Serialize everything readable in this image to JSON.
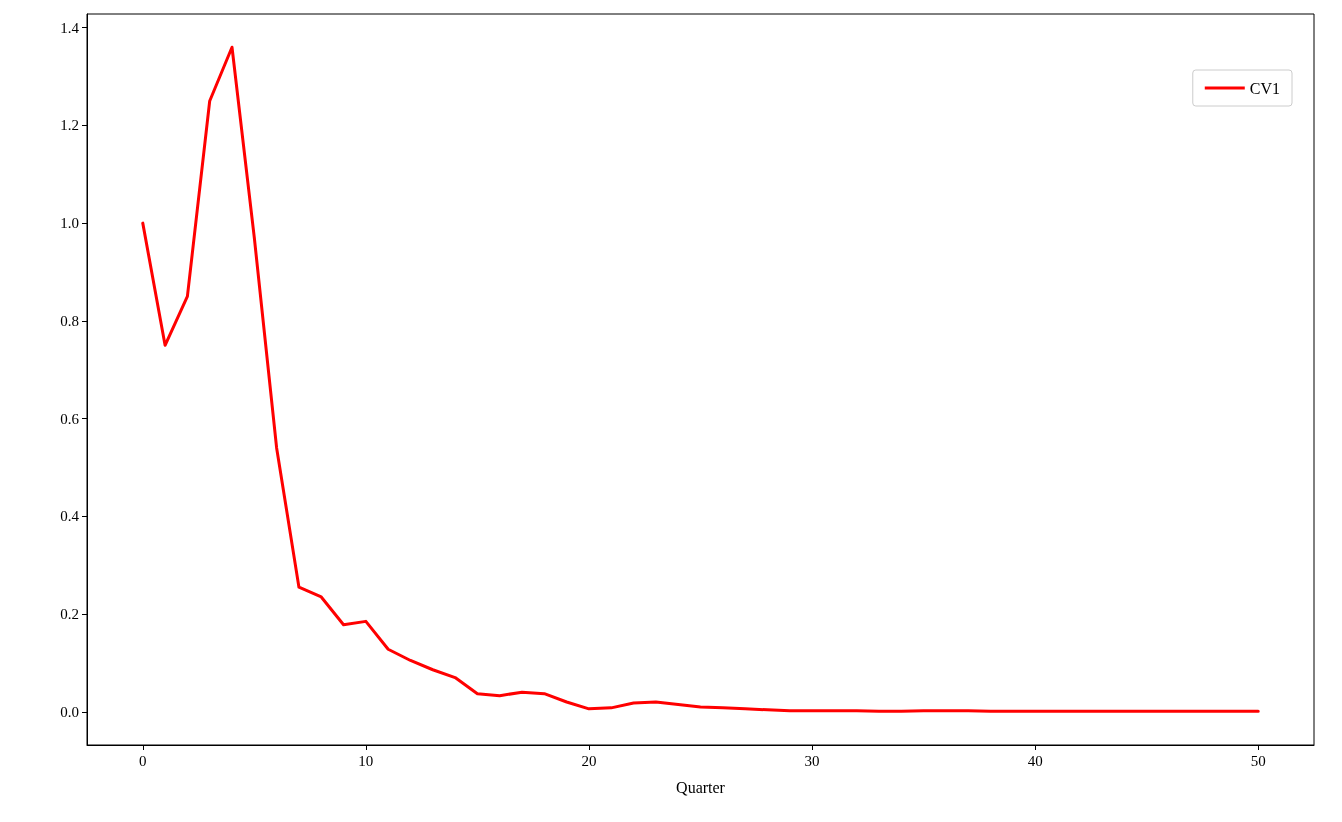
{
  "chart_data": {
    "type": "line",
    "xlabel": "Quarter",
    "x": [
      0,
      1,
      2,
      3,
      4,
      5,
      6,
      7,
      8,
      9,
      10,
      11,
      12,
      13,
      14,
      15,
      16,
      17,
      18,
      19,
      20,
      21,
      22,
      23,
      24,
      25,
      26,
      27,
      28,
      29,
      30,
      31,
      32,
      33,
      34,
      35,
      36,
      37,
      38,
      39,
      40,
      41,
      42,
      43,
      44,
      45,
      46,
      47,
      48,
      49,
      50
    ],
    "series": [
      {
        "name": "CV1",
        "color": "#ff0000",
        "values": [
          1.0,
          0.75,
          0.85,
          1.25,
          1.36,
          0.97,
          0.54,
          0.255,
          0.235,
          0.178,
          0.185,
          0.128,
          0.105,
          0.086,
          0.07,
          0.037,
          0.033,
          0.04,
          0.037,
          0.02,
          0.006,
          0.008,
          0.018,
          0.02,
          0.015,
          0.01,
          0.008,
          0.006,
          0.004,
          0.002,
          0.002,
          0.002,
          0.002,
          0.001,
          0.001,
          0.002,
          0.002,
          0.002,
          0.001,
          0.001,
          0.001,
          0.001,
          0.001,
          0.001,
          0.001,
          0.001,
          0.001,
          0.001,
          0.001,
          0.001,
          0.001
        ]
      }
    ],
    "xlim": [
      -2.5,
      52.5
    ],
    "xticks": [
      0,
      10,
      20,
      30,
      40,
      50
    ],
    "ylim": [
      -0.068,
      1.428
    ],
    "yticks": [
      {
        "value": 0,
        "label": "0.0"
      },
      {
        "value": 0.2,
        "label": "0.2"
      },
      {
        "value": 0.4,
        "label": "0.4"
      },
      {
        "value": 0.6,
        "label": "0.6"
      },
      {
        "value": 0.8,
        "label": "0.8"
      },
      {
        "value": 1.0,
        "label": "1.0"
      },
      {
        "value": 1.2,
        "label": "1.2"
      },
      {
        "value": 1.4,
        "label": "1.4"
      }
    ],
    "grid": false,
    "legend": "top right",
    "marker": "none",
    "line_style": "solid"
  }
}
